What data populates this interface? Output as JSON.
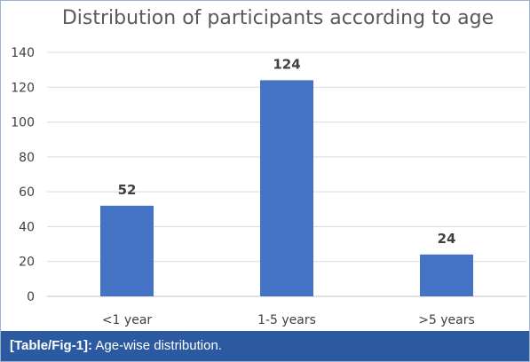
{
  "chart_data": {
    "type": "bar",
    "title": "Distribution of participants according to age",
    "categories": [
      "<1 year",
      "1-5 years",
      ">5 years"
    ],
    "values": [
      52,
      124,
      24
    ],
    "xlabel": "",
    "ylabel": "",
    "ylim": [
      0,
      140
    ],
    "yticks": [
      0,
      20,
      40,
      60,
      80,
      100,
      120,
      140
    ],
    "grid": true,
    "data_labels": true,
    "colors": {
      "bar": "#4472c4"
    }
  },
  "caption": {
    "tag": "[Table/Fig-1]:",
    "text": " Age-wise distribution."
  },
  "colors": {
    "caption_background": "#2c5aa0",
    "caption_text": "#ffffff"
  }
}
